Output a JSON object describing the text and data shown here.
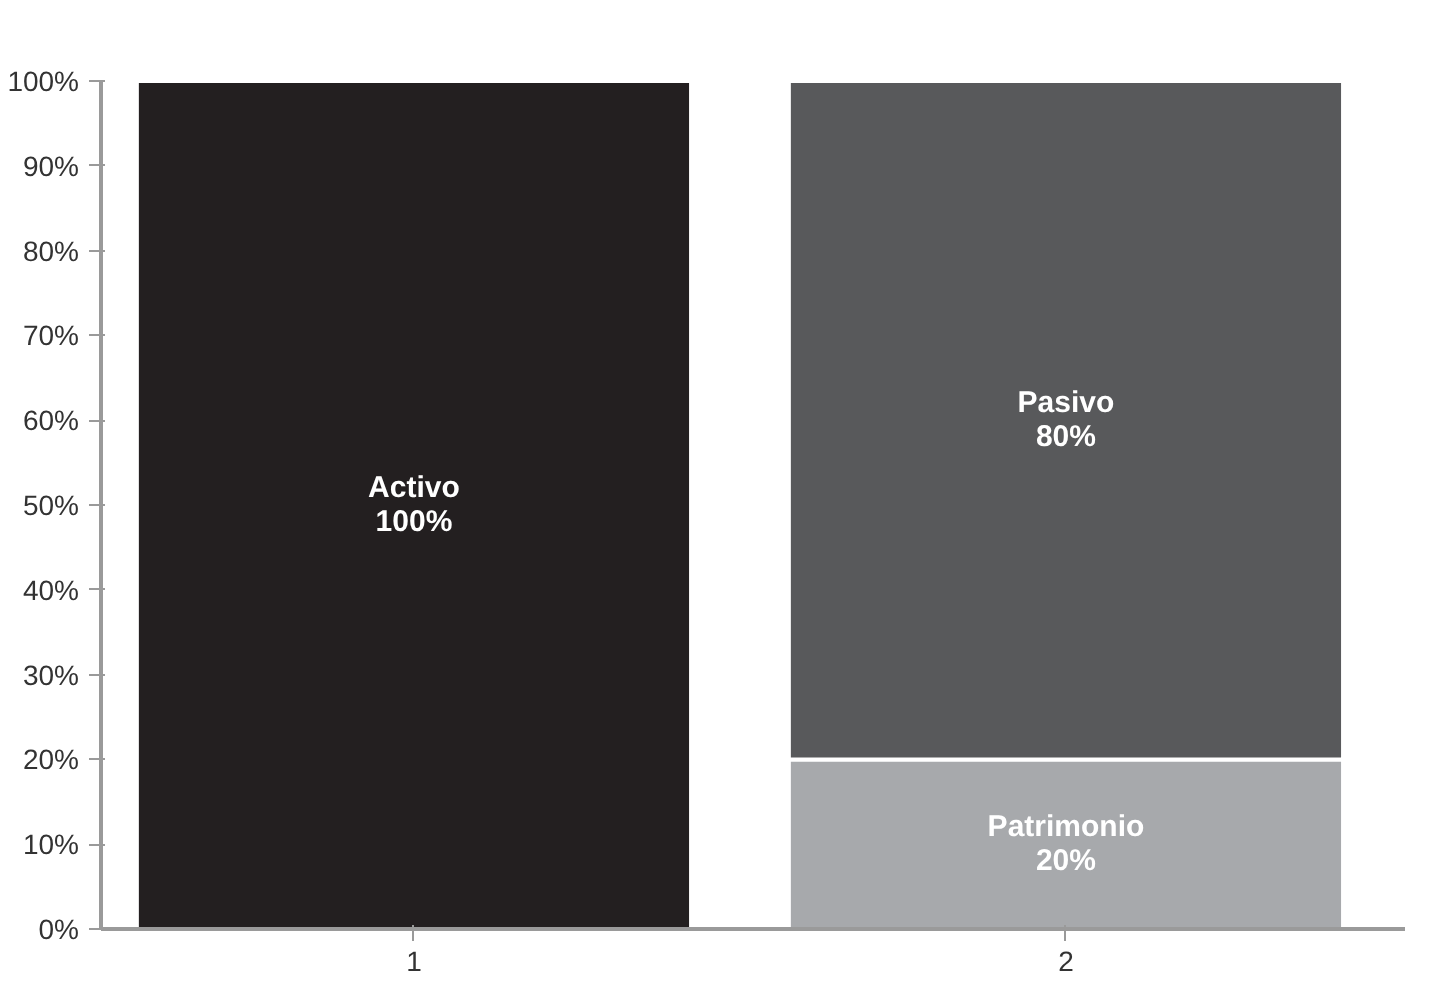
{
  "chart_data": {
    "type": "bar",
    "stacked": true,
    "categories": [
      "1",
      "2"
    ],
    "series": [
      {
        "name": "Activo",
        "color": "#231f20",
        "values": [
          100,
          null
        ],
        "value_labels": [
          "100%",
          null
        ]
      },
      {
        "name": "Patrimonio",
        "color": "#a7a9ac",
        "values": [
          null,
          20
        ],
        "value_labels": [
          null,
          "20%"
        ]
      },
      {
        "name": "Pasivo",
        "color": "#58595b",
        "values": [
          null,
          80
        ],
        "value_labels": [
          null,
          "80%"
        ]
      }
    ],
    "ylim": [
      0,
      100
    ],
    "yticks": [
      {
        "value": 0,
        "label": "0%"
      },
      {
        "value": 10,
        "label": "10%"
      },
      {
        "value": 20,
        "label": "20%"
      },
      {
        "value": 30,
        "label": "30%"
      },
      {
        "value": 40,
        "label": "40%"
      },
      {
        "value": 50,
        "label": "50%"
      },
      {
        "value": 60,
        "label": "60%"
      },
      {
        "value": 70,
        "label": "70%"
      },
      {
        "value": 80,
        "label": "80%"
      },
      {
        "value": 90,
        "label": "90%"
      },
      {
        "value": 100,
        "label": "100%"
      }
    ],
    "grid": false
  }
}
